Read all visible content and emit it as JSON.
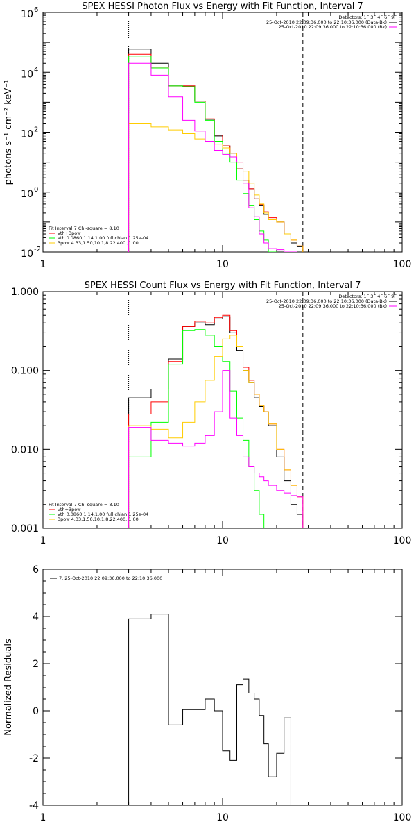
{
  "chart_data": [
    {
      "type": "line",
      "title": "SPEX HESSI Photon Flux vs Energy with Fit Function, Interval 7",
      "xlabel": "",
      "ylabel": "photons s⁻¹ cm⁻² keV⁻¹",
      "xscale": "log",
      "yscale": "log",
      "xlim": [
        1,
        100
      ],
      "ylim": [
        0.01,
        1000000
      ],
      "xticks": [
        1,
        10,
        100
      ],
      "xticklabels": [
        "1",
        "10",
        "100"
      ],
      "yticks": [
        0.01,
        1,
        100,
        10000,
        1000000
      ],
      "yticklabels": [
        "10",
        "10",
        "10",
        "10",
        "10"
      ],
      "ytickexps": [
        "-2",
        "0",
        "2",
        "4",
        "6"
      ],
      "vlines": [
        {
          "x": 3,
          "style": "dotted"
        },
        {
          "x": 28,
          "style": "dashed"
        }
      ],
      "legend_tr": {
        "placement": "top-right",
        "header": "Detectors: 1F 3F 4F 6F 9F",
        "items": [
          {
            "label": "25-Oct-2010 22:09:36.000 to 22:10:36.000 (Data-Bk)",
            "color": "#000000"
          },
          {
            "label": "25-Oct-2010 22:09:36.000 to 22:10:36.000 (Bk)",
            "color": "#ff00ff"
          }
        ]
      },
      "legend_bl": {
        "placement": "bottom-left",
        "header": "Fit Interval  7    Chi-square = 8.10",
        "items": [
          {
            "label": "vth+3pow",
            "color": "#ff0000"
          },
          {
            "label": "vth 0.0860,1.14,1.00  full chian 1.25e-04",
            "color": "#00ff00"
          },
          {
            "label": "3pow 4.33,1.50,10.1,8.22,400.,1.00",
            "color": "#ffcc00"
          }
        ]
      },
      "edges": [
        3,
        4,
        5,
        6,
        7,
        8,
        9,
        10,
        11,
        12,
        13,
        14,
        15,
        16,
        17,
        18,
        20,
        22,
        24,
        26,
        28
      ],
      "series": [
        {
          "color": "#000000",
          "values": [
            60000,
            20000,
            3500,
            3500,
            1100,
            270,
            75,
            35,
            20,
            6,
            2.5,
            1.3,
            0.6,
            0.35,
            0.18,
            0.12,
            0.1,
            0.04,
            0.02,
            0.015
          ]
        },
        {
          "color": "#ff0000",
          "values": [
            40000,
            15000,
            3500,
            3500,
            1100,
            280,
            80,
            35,
            20,
            6,
            2.5,
            1.3,
            0.6,
            0.38,
            0.22,
            0.14,
            0.1,
            0.04,
            0.025,
            0.016
          ]
        },
        {
          "color": "#00ff00",
          "values": [
            35000,
            14000,
            3500,
            3300,
            1000,
            250,
            50,
            20,
            10,
            2.5,
            0.9,
            0.35,
            0.12,
            0.05,
            0.025,
            0.01
          ]
        },
        {
          "color": "#ffcc00",
          "values": [
            200,
            150,
            120,
            90,
            60,
            50,
            40,
            30,
            20,
            10,
            5,
            2,
            0.8,
            0.4,
            0.2,
            0.12,
            0.1,
            0.04,
            0.025,
            0.016
          ]
        },
        {
          "color": "#ff00ff",
          "values": [
            20000,
            8000,
            1500,
            250,
            110,
            50,
            25,
            18,
            15,
            10,
            2,
            0.3,
            0.15,
            0.04,
            0.02,
            0.013,
            0.012,
            0.01,
            0.01
          ]
        }
      ]
    },
    {
      "type": "line",
      "title": "SPEX HESSI Count Flux vs Energy with Fit Function, Interval 7",
      "xlabel": "",
      "ylabel": "",
      "xscale": "log",
      "yscale": "log",
      "xlim": [
        1,
        100
      ],
      "ylim": [
        0.001,
        1
      ],
      "xticks": [
        1,
        10,
        100
      ],
      "xticklabels": [
        "1",
        "10",
        "100"
      ],
      "yticks": [
        0.001,
        0.01,
        0.1,
        1
      ],
      "yticklabels": [
        "0.001",
        "0.010",
        "0.100",
        "1.000"
      ],
      "vlines": [
        {
          "x": 3,
          "style": "dotted"
        },
        {
          "x": 28,
          "style": "dashed"
        }
      ],
      "legend_tr": {
        "placement": "top-right",
        "header": "Detectors: 1F 3F 4F 6F 9F",
        "items": [
          {
            "label": "25-Oct-2010 22:09:36.000 to 22:10:36.000 (Data-Bk)",
            "color": "#000000"
          },
          {
            "label": "25-Oct-2010 22:09:36.000 to 22:10:36.000 (Bk)",
            "color": "#ff00ff"
          }
        ]
      },
      "legend_bl": {
        "placement": "bottom-left",
        "header": "Fit Interval  7    Chi-square = 8.10",
        "items": [
          {
            "label": "vth+3pow",
            "color": "#ff0000"
          },
          {
            "label": "vth 0.0860,1.14,1.00  full chian 1.25e-04",
            "color": "#00ff00"
          },
          {
            "label": "3pow 4.33,1.50,10.1,8.22,400.,1.00",
            "color": "#ffcc00"
          }
        ]
      },
      "edges": [
        3,
        4,
        5,
        6,
        7,
        8,
        9,
        10,
        11,
        12,
        13,
        14,
        15,
        16,
        17,
        18,
        20,
        22,
        24,
        26,
        28
      ],
      "series": [
        {
          "color": "#000000",
          "values": [
            0.045,
            0.058,
            0.14,
            0.36,
            0.4,
            0.38,
            0.45,
            0.48,
            0.3,
            0.18,
            0.1,
            0.07,
            0.045,
            0.035,
            0.03,
            0.02,
            0.008,
            0.004,
            0.002,
            0.0015
          ]
        },
        {
          "color": "#ff0000",
          "values": [
            0.028,
            0.04,
            0.13,
            0.36,
            0.42,
            0.4,
            0.47,
            0.5,
            0.32,
            0.2,
            0.11,
            0.075,
            0.05,
            0.036,
            0.03,
            0.021,
            0.01,
            0.0055,
            0.0035,
            0.0025
          ]
        },
        {
          "color": "#00ff00",
          "values": [
            0.008,
            0.022,
            0.12,
            0.32,
            0.33,
            0.28,
            0.2,
            0.13,
            0.055,
            0.025,
            0.013,
            0.006,
            0.003,
            0.0015
          ]
        },
        {
          "color": "#ffcc00",
          "values": [
            0.02,
            0.018,
            0.014,
            0.022,
            0.04,
            0.075,
            0.15,
            0.25,
            0.28,
            0.2,
            0.1,
            0.07,
            0.05,
            0.036,
            0.03,
            0.021,
            0.01,
            0.0055,
            0.0035,
            0.0025
          ]
        },
        {
          "color": "#ff00ff",
          "values": [
            0.019,
            0.013,
            0.012,
            0.011,
            0.012,
            0.015,
            0.03,
            0.1,
            0.025,
            0.015,
            0.008,
            0.006,
            0.005,
            0.0045,
            0.004,
            0.0035,
            0.003,
            0.0028,
            0.0026,
            0.0025
          ]
        }
      ]
    },
    {
      "type": "line",
      "title": "",
      "xlabel": "",
      "ylabel": "Normalized Residuals",
      "xscale": "log",
      "yscale": "linear",
      "xlim": [
        1,
        100
      ],
      "ylim": [
        -4,
        6
      ],
      "xticks": [
        1,
        10,
        100
      ],
      "xticklabels": [
        "1",
        "10",
        "100"
      ],
      "yticks": [
        -4,
        -2,
        0,
        2,
        4,
        6
      ],
      "yticklabels": [
        "-4",
        "-2",
        "0",
        "2",
        "4",
        "6"
      ],
      "legend_tr": null,
      "legend_bl": null,
      "legend_tl": {
        "placement": "top-left",
        "items": [
          {
            "label": "7. 25-Oct-2010 22:09:36.000 to 22:10:36.000",
            "color": "#000000"
          }
        ]
      },
      "edges": [
        3,
        4,
        5,
        6,
        7,
        8,
        9,
        10,
        11,
        12,
        13,
        14,
        15,
        16,
        17,
        18,
        20,
        22,
        24,
        26,
        28
      ],
      "series": [
        {
          "color": "#000000",
          "values": [
            3.9,
            4.1,
            -0.6,
            0.05,
            0.05,
            0.5,
            0.0,
            -1.7,
            -2.1,
            1.1,
            1.35,
            0.75,
            0.5,
            -0.2,
            -1.4,
            -2.8,
            -1.8,
            -0.3
          ]
        }
      ]
    }
  ]
}
